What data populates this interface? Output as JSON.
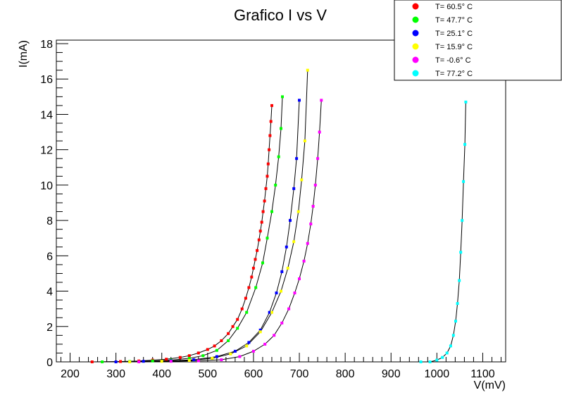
{
  "chart_data": {
    "type": "scatter",
    "title": "Grafico I vs V",
    "xlabel": "V(mV)",
    "ylabel": "I(mA)",
    "xlim": [
      170,
      1150
    ],
    "ylim": [
      0,
      18.2
    ],
    "x_ticks": [
      200,
      300,
      400,
      500,
      600,
      700,
      800,
      900,
      1000,
      1100
    ],
    "y_ticks": [
      0,
      2,
      4,
      6,
      8,
      10,
      12,
      14,
      16,
      18
    ],
    "grid": false,
    "legend_position": "top-right",
    "series": [
      {
        "name": "T= 60.5° C",
        "color": "#ff0000",
        "x": [
          248,
          310,
          350,
          380,
          410,
          440,
          460,
          480,
          500,
          515,
          530,
          545,
          555,
          565,
          575,
          583,
          590,
          596,
          600,
          604,
          608,
          612,
          615,
          618,
          621,
          624,
          627,
          630,
          632,
          634,
          636,
          638,
          640
        ],
        "y": [
          0.0,
          0.02,
          0.05,
          0.1,
          0.15,
          0.25,
          0.35,
          0.5,
          0.7,
          0.9,
          1.2,
          1.6,
          2.0,
          2.4,
          3.0,
          3.6,
          4.2,
          4.8,
          5.3,
          5.8,
          6.3,
          6.9,
          7.4,
          7.9,
          8.5,
          9.1,
          9.8,
          10.5,
          11.2,
          12.0,
          12.8,
          13.6,
          14.5
        ]
      },
      {
        "name": "T= 47.7° C",
        "color": "#00ff00",
        "x": [
          270,
          330,
          380,
          420,
          460,
          490,
          520,
          545,
          565,
          585,
          605,
          620,
          630,
          640,
          648,
          655,
          660,
          663
        ],
        "y": [
          0.0,
          0.02,
          0.05,
          0.1,
          0.2,
          0.35,
          0.65,
          1.2,
          1.9,
          2.8,
          4.2,
          5.6,
          7.0,
          8.5,
          10.0,
          11.6,
          13.2,
          15.0
        ]
      },
      {
        "name": "T= 25.1° C",
        "color": "#0000ff",
        "x": [
          300,
          360,
          420,
          470,
          520,
          560,
          590,
          615,
          635,
          650,
          662,
          672,
          680,
          688,
          694,
          700
        ],
        "y": [
          0.0,
          0.03,
          0.06,
          0.12,
          0.3,
          0.6,
          1.1,
          1.8,
          2.8,
          3.9,
          5.1,
          6.5,
          8.0,
          9.8,
          11.5,
          14.8
        ]
      },
      {
        "name": "T= 15.9° C",
        "color": "#ffff00",
        "x": [
          330,
          400,
          460,
          510,
          550,
          585,
          615,
          640,
          660,
          675,
          688,
          698,
          705,
          712,
          718
        ],
        "y": [
          0.0,
          0.03,
          0.08,
          0.2,
          0.45,
          0.9,
          1.7,
          2.8,
          4.0,
          5.3,
          6.8,
          8.5,
          10.3,
          12.5,
          16.5
        ]
      },
      {
        "name": "T= -0.6° C",
        "color": "#ff00ff",
        "x": [
          350,
          420,
          480,
          530,
          570,
          600,
          625,
          645,
          662,
          677,
          690,
          700,
          710,
          718,
          725,
          730,
          735,
          740,
          744,
          748
        ],
        "y": [
          0.0,
          0.03,
          0.06,
          0.12,
          0.3,
          0.6,
          1.0,
          1.5,
          2.2,
          3.0,
          3.9,
          4.7,
          5.7,
          6.7,
          7.8,
          8.8,
          10.0,
          11.5,
          13.0,
          14.8
        ]
      },
      {
        "name": "T= 77.2° C",
        "color": "#00ffff",
        "x": [
          965,
          985,
          1000,
          1012,
          1022,
          1030,
          1036,
          1041,
          1045,
          1049,
          1052,
          1055,
          1058,
          1061,
          1063
        ],
        "y": [
          0.0,
          0.0,
          0.1,
          0.25,
          0.5,
          0.9,
          1.5,
          2.3,
          3.3,
          4.6,
          6.2,
          8.0,
          10.2,
          12.3,
          14.7
        ]
      }
    ]
  }
}
